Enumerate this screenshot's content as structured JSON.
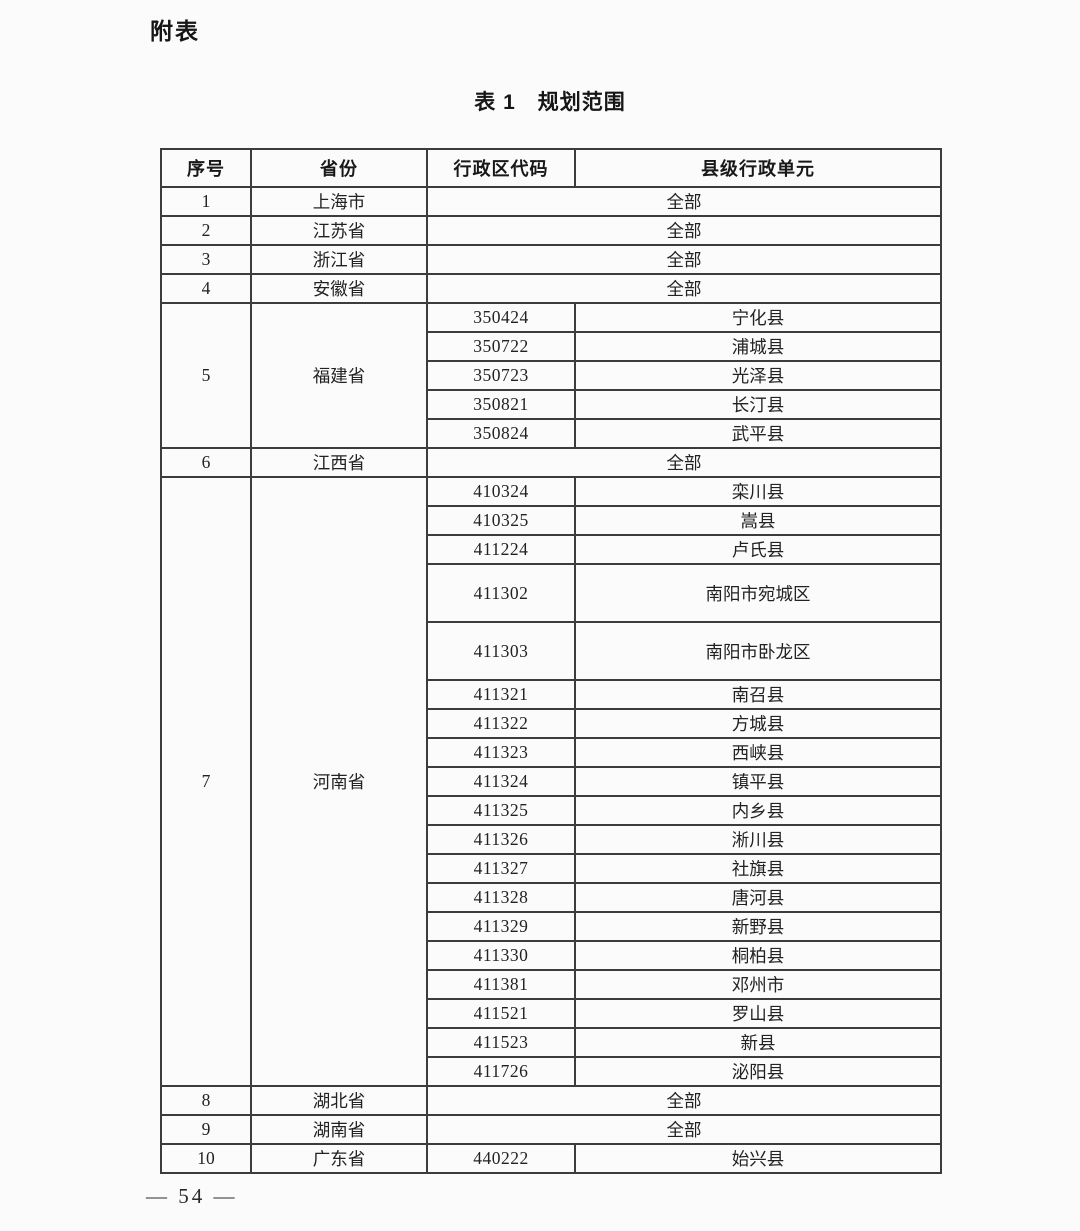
{
  "page": {
    "appendix_label": "附表",
    "title": "表 1　规划范围",
    "page_number": "— 54 —"
  },
  "table": {
    "headers": [
      "序号",
      "省份",
      "行政区代码",
      "县级行政单元"
    ],
    "all_label": "全部",
    "sections": [
      {
        "index": "1",
        "province": "上海市",
        "all": true
      },
      {
        "index": "2",
        "province": "江苏省",
        "all": true
      },
      {
        "index": "3",
        "province": "浙江省",
        "all": true
      },
      {
        "index": "4",
        "province": "安徽省",
        "all": true
      },
      {
        "index": "5",
        "province": "福建省",
        "entries": [
          {
            "code": "350424",
            "unit": "宁化县"
          },
          {
            "code": "350722",
            "unit": "浦城县"
          },
          {
            "code": "350723",
            "unit": "光泽县"
          },
          {
            "code": "350821",
            "unit": "长汀县"
          },
          {
            "code": "350824",
            "unit": "武平县"
          }
        ]
      },
      {
        "index": "6",
        "province": "江西省",
        "all": true
      },
      {
        "index": "7",
        "province": "河南省",
        "entries": [
          {
            "code": "410324",
            "unit": "栾川县"
          },
          {
            "code": "410325",
            "unit": "嵩县"
          },
          {
            "code": "411224",
            "unit": "卢氏县"
          },
          {
            "code": "411302",
            "unit": "南阳市宛城区",
            "tall": true
          },
          {
            "code": "411303",
            "unit": "南阳市卧龙区",
            "tall": true
          },
          {
            "code": "411321",
            "unit": "南召县"
          },
          {
            "code": "411322",
            "unit": "方城县"
          },
          {
            "code": "411323",
            "unit": "西峡县"
          },
          {
            "code": "411324",
            "unit": "镇平县"
          },
          {
            "code": "411325",
            "unit": "内乡县"
          },
          {
            "code": "411326",
            "unit": "淅川县"
          },
          {
            "code": "411327",
            "unit": "社旗县"
          },
          {
            "code": "411328",
            "unit": "唐河县"
          },
          {
            "code": "411329",
            "unit": "新野县"
          },
          {
            "code": "411330",
            "unit": "桐柏县"
          },
          {
            "code": "411381",
            "unit": "邓州市"
          },
          {
            "code": "411521",
            "unit": "罗山县"
          },
          {
            "code": "411523",
            "unit": "新县"
          },
          {
            "code": "411726",
            "unit": "泌阳县"
          }
        ]
      },
      {
        "index": "8",
        "province": "湖北省",
        "all": true
      },
      {
        "index": "9",
        "province": "湖南省",
        "all": true
      },
      {
        "index": "10",
        "province": "广东省",
        "entries": [
          {
            "code": "440222",
            "unit": "始兴县"
          }
        ]
      }
    ]
  }
}
